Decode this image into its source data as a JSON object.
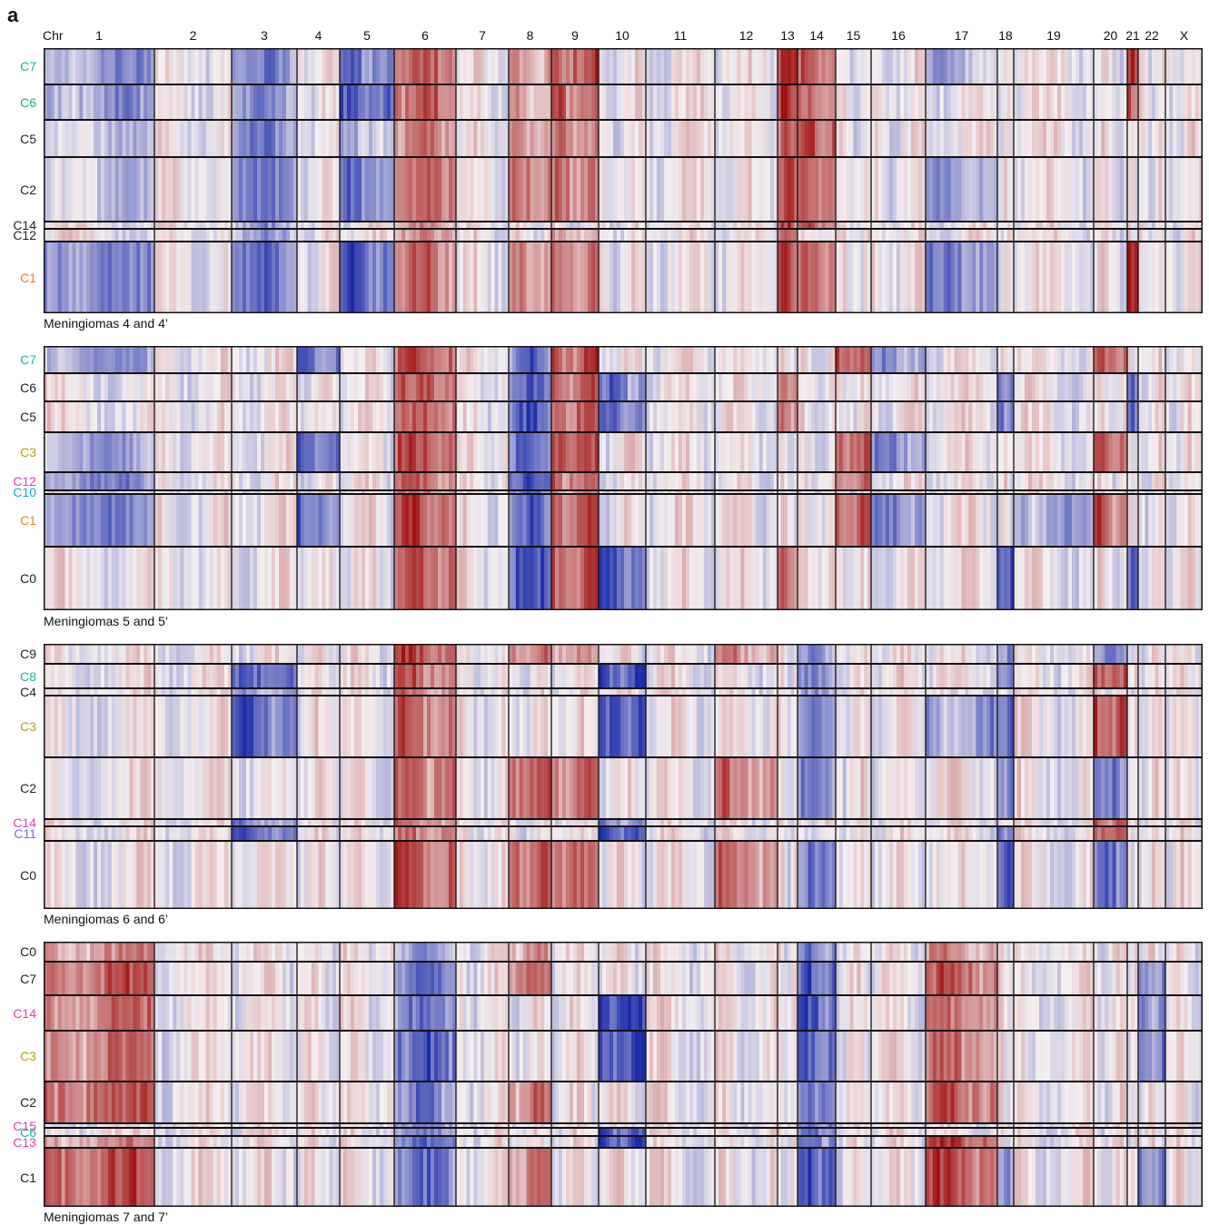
{
  "panel_letter": "a",
  "chr_prefix": "Chr",
  "colors": {
    "gain": "#a01010",
    "loss": "#1a2aa8",
    "neutral": "#f4eef0",
    "border": "#111111"
  },
  "chart_data": {
    "type": "heatmap",
    "chromosomes": [
      {
        "label": "1",
        "weight": 121
      },
      {
        "label": "2",
        "weight": 85
      },
      {
        "label": "3",
        "weight": 72
      },
      {
        "label": "4",
        "weight": 46
      },
      {
        "label": "5",
        "weight": 60
      },
      {
        "label": "6",
        "weight": 68
      },
      {
        "label": "7",
        "weight": 58
      },
      {
        "label": "8",
        "weight": 46
      },
      {
        "label": "9",
        "weight": 52
      },
      {
        "label": "10",
        "weight": 52
      },
      {
        "label": "11",
        "weight": 76
      },
      {
        "label": "12",
        "weight": 68
      },
      {
        "label": "13",
        "weight": 22
      },
      {
        "label": "14",
        "weight": 42
      },
      {
        "label": "15",
        "weight": 39
      },
      {
        "label": "16",
        "weight": 59
      },
      {
        "label": "17",
        "weight": 79
      },
      {
        "label": "18",
        "weight": 18
      },
      {
        "label": "19",
        "weight": 88
      },
      {
        "label": "20",
        "weight": 36
      },
      {
        "label": "21",
        "weight": 12
      },
      {
        "label": "22",
        "weight": 30
      },
      {
        "label": "X",
        "weight": 41
      }
    ],
    "panels": [
      {
        "caption": "Meningiomas 4 and 4’",
        "clusters": [
          {
            "label": "C7",
            "color": "#17b8a0",
            "weight": 40,
            "profile": {
              "1": -0.4,
              "3": -0.5,
              "5": -0.6,
              "6": 0.6,
              "8": 0.3,
              "9": 0.7,
              "13": 0.8,
              "14": 0.6,
              "17": -0.3,
              "21": 0.9
            }
          },
          {
            "label": "C6",
            "color": "#14b07c",
            "weight": 38,
            "profile": {
              "1": -0.4,
              "3": -0.5,
              "5": -0.7,
              "6": 0.6,
              "8": 0.3,
              "9": 0.6,
              "13": 0.8,
              "14": 0.6,
              "21": 0.7
            }
          },
          {
            "label": "C5",
            "color": "#222222",
            "weight": 41,
            "profile": {
              "1": -0.2,
              "3": -0.5,
              "5": -0.3,
              "6": 0.5,
              "8": 0.4,
              "9": 0.5,
              "13": 0.7,
              "14": 0.7
            }
          },
          {
            "label": "C2",
            "color": "#222222",
            "weight": 70,
            "profile": {
              "1": -0.2,
              "3": -0.6,
              "5": -0.6,
              "6": 0.6,
              "8": 0.5,
              "9": 0.5,
              "13": 0.7,
              "14": 0.6,
              "17": -0.4
            }
          },
          {
            "label": "C14",
            "color": "#222222",
            "weight": 8,
            "profile": {
              "3": -0.4,
              "6": 0.4,
              "13": 0.7,
              "14": 0.6
            }
          },
          {
            "label": "C12",
            "color": "#222222",
            "weight": 14,
            "profile": {
              "3": -0.4,
              "6": 0.4,
              "9": 0.3,
              "13": 0.6
            }
          },
          {
            "label": "C1",
            "color": "#f08018",
            "weight": 78,
            "profile": {
              "1": -0.5,
              "3": -0.6,
              "5": -0.7,
              "6": 0.6,
              "8": 0.4,
              "9": 0.5,
              "13": 0.8,
              "14": 0.6,
              "17": -0.5,
              "21": 0.95
            }
          }
        ]
      },
      {
        "caption": "Meningiomas 5 and 5’",
        "clusters": [
          {
            "label": "C7",
            "color": "#17b8a0",
            "weight": 30,
            "profile": {
              "1": -0.4,
              "4": -0.6,
              "6": 0.7,
              "8": -0.7,
              "9": 0.7,
              "15": 0.7,
              "16": -0.4,
              "20": 0.6
            }
          },
          {
            "label": "C6",
            "color": "#222222",
            "weight": 31,
            "profile": {
              "6": 0.6,
              "8": -0.7,
              "9": 0.6,
              "10": -0.6,
              "13": 0.5,
              "18": -0.6,
              "21": -0.7
            }
          },
          {
            "label": "C5",
            "color": "#222222",
            "weight": 33,
            "profile": {
              "6": 0.6,
              "8": -0.7,
              "9": 0.6,
              "10": -0.6,
              "13": 0.5,
              "18": -0.6,
              "21": -0.7
            }
          },
          {
            "label": "C3",
            "color": "#b8a010",
            "weight": 44,
            "profile": {
              "1": -0.4,
              "4": -0.7,
              "6": 0.7,
              "8": -0.7,
              "9": 0.8,
              "15": 0.6,
              "16": -0.5,
              "20": 0.6
            }
          },
          {
            "label": "C12",
            "color": "#e040b0",
            "weight": 20,
            "profile": {
              "1": -0.5,
              "6": 0.6,
              "8": -0.7,
              "9": 0.6,
              "15": 0.5
            }
          },
          {
            "label": "C10",
            "color": "#10a8e0",
            "weight": 4,
            "profile": {
              "6": 0.5,
              "8": -0.6,
              "9": 0.5
            }
          },
          {
            "label": "C1",
            "color": "#f08018",
            "weight": 57,
            "profile": {
              "1": -0.5,
              "4": -0.6,
              "6": 0.7,
              "8": -0.7,
              "9": 0.7,
              "15": 0.7,
              "16": -0.5,
              "19": -0.4,
              "20": 0.6
            }
          },
          {
            "label": "C0",
            "color": "#222222",
            "weight": 70,
            "profile": {
              "6": 0.6,
              "8": -0.8,
              "9": 0.6,
              "10": -0.7,
              "13": 0.5,
              "18": -0.7,
              "21": -0.7
            }
          }
        ]
      },
      {
        "caption": "Meningiomas 6 and 6’",
        "clusters": [
          {
            "label": "C9",
            "color": "#222222",
            "weight": 22,
            "profile": {
              "6": 0.7,
              "8": 0.5,
              "9": 0.4,
              "12": 0.4,
              "14": -0.5,
              "18": -0.5,
              "20": -0.5
            }
          },
          {
            "label": "C8",
            "color": "#17b8a0",
            "weight": 26,
            "profile": {
              "3": -0.7,
              "6": 0.6,
              "10": -0.8,
              "14": -0.5,
              "18": -0.6,
              "20": 0.7
            }
          },
          {
            "label": "C4",
            "color": "#222222",
            "weight": 8,
            "profile": {
              "3": -0.4,
              "6": 0.5,
              "14": -0.4
            }
          },
          {
            "label": "C3",
            "color": "#b8a010",
            "weight": 66,
            "profile": {
              "3": -0.7,
              "6": 0.6,
              "10": -0.8,
              "14": -0.5,
              "17": -0.4,
              "18": -0.6,
              "20": 0.7
            }
          },
          {
            "label": "C2",
            "color": "#222222",
            "weight": 67,
            "profile": {
              "6": 0.6,
              "8": 0.6,
              "9": 0.6,
              "12": 0.5,
              "14": -0.6,
              "18": -0.6,
              "20": -0.6
            }
          },
          {
            "label": "C14",
            "color": "#e040b0",
            "weight": 8,
            "profile": {
              "3": -0.5,
              "6": 0.5,
              "10": -0.5,
              "20": 0.6
            }
          },
          {
            "label": "C11",
            "color": "#7070e0",
            "weight": 16,
            "profile": {
              "3": -0.7,
              "6": 0.5,
              "10": -0.8,
              "18": -0.6,
              "20": 0.7
            }
          },
          {
            "label": "C0",
            "color": "#222222",
            "weight": 73,
            "profile": {
              "6": 0.7,
              "8": 0.6,
              "9": 0.6,
              "12": 0.5,
              "14": -0.6,
              "18": -0.7,
              "20": -0.6
            }
          }
        ]
      },
      {
        "caption": "Meningiomas 7 and 7’",
        "clusters": [
          {
            "label": "C0",
            "color": "#222222",
            "weight": 22,
            "profile": {
              "1": 0.4,
              "6": -0.4,
              "8": 0.4,
              "14": -0.5,
              "17": 0.4
            }
          },
          {
            "label": "C7",
            "color": "#222222",
            "weight": 37,
            "profile": {
              "1": 0.6,
              "6": -0.6,
              "8": 0.5,
              "14": -0.7,
              "17": 0.6,
              "22": -0.5
            }
          },
          {
            "label": "C14",
            "color": "#e040b0",
            "weight": 39,
            "profile": {
              "1": 0.5,
              "6": -0.6,
              "10": -0.8,
              "14": -0.7,
              "17": 0.5,
              "22": -0.5
            }
          },
          {
            "label": "C3",
            "color": "#b8a010",
            "weight": 56,
            "profile": {
              "1": 0.5,
              "6": -0.7,
              "10": -0.8,
              "14": -0.7,
              "17": 0.5,
              "22": -0.5
            }
          },
          {
            "label": "C2",
            "color": "#222222",
            "weight": 46,
            "profile": {
              "1": 0.6,
              "6": -0.5,
              "8": 0.5,
              "14": -0.6,
              "17": 0.6
            }
          },
          {
            "label": "C15",
            "color": "#e040b0",
            "weight": 5,
            "profile": {
              "6": -0.5,
              "14": -0.6
            }
          },
          {
            "label": "C6",
            "color": "#17b8a0",
            "weight": 9,
            "profile": {
              "6": -0.5,
              "10": -0.8,
              "14": -0.6
            }
          },
          {
            "label": "C13",
            "color": "#e040b0",
            "weight": 13,
            "profile": {
              "1": 0.4,
              "6": -0.6,
              "10": -0.9,
              "14": -0.6,
              "17": 0.7
            }
          },
          {
            "label": "C1",
            "color": "#222222",
            "weight": 65,
            "profile": {
              "1": 0.7,
              "6": -0.6,
              "8": 0.5,
              "14": -0.8,
              "17": 0.7,
              "18": -0.4,
              "22": -0.5
            }
          }
        ]
      }
    ]
  }
}
